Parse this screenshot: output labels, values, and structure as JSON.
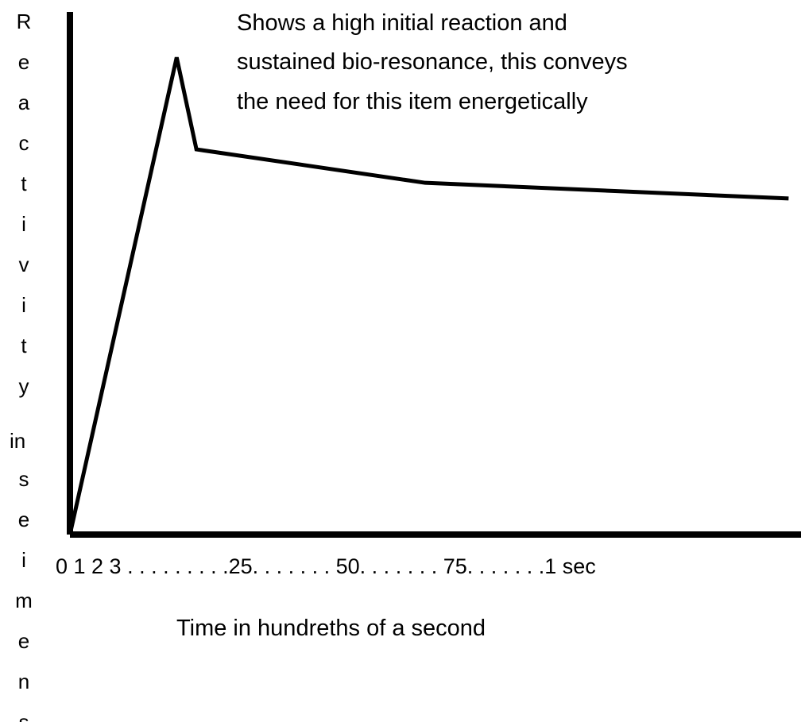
{
  "chart_data": {
    "type": "line",
    "annotation": [
      "Shows a high initial reaction and",
      "sustained bio-resonance, this conveys",
      "the need for this item energetically"
    ],
    "y_label": [
      "Reactivity",
      "in",
      "seimens"
    ],
    "x_axis_text": "0 1 2 3 . . . . . . . . .25. . . . . . . 50. . . . . . . 75. . . . . . .1 sec",
    "x_label": "Time in hundreths of a second",
    "x": [
      0,
      14.6,
      17.3,
      48.6,
      98.3
    ],
    "values": [
      0,
      91.3,
      73.7,
      67.3,
      64.3
    ],
    "xlim": [
      0,
      100
    ],
    "ylim": [
      0,
      100
    ],
    "color": "#000000"
  }
}
